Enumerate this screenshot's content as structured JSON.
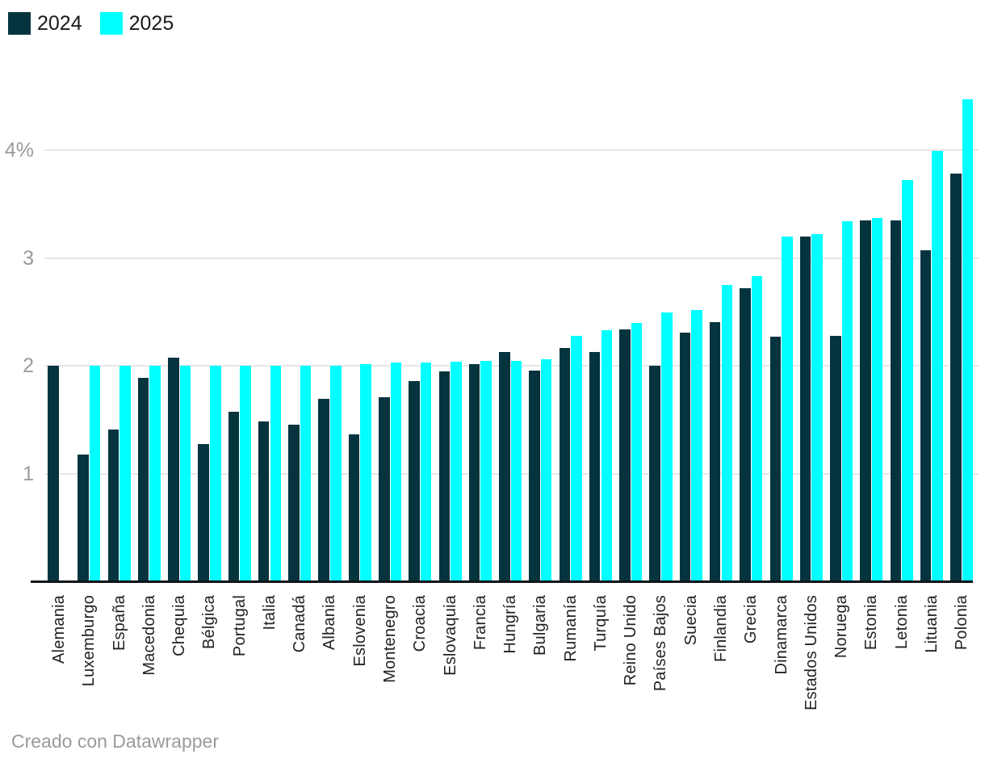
{
  "footer": {
    "credit_text": "Creado con Datawrapper"
  },
  "chart_data": {
    "type": "bar",
    "title": "",
    "xlabel": "",
    "ylabel": "",
    "unit": "%",
    "grid": true,
    "legend_position": "top-left",
    "ylim": [
      0,
      4.6
    ],
    "y_ticks": [
      {
        "value": 4,
        "label": "4%"
      },
      {
        "value": 3,
        "label": "3"
      },
      {
        "value": 2,
        "label": "2"
      },
      {
        "value": 1,
        "label": "1"
      }
    ],
    "categories": [
      "Alemania",
      "Luxemburgo",
      "España",
      "Macedonia",
      "Chequia",
      "Bélgica",
      "Portugal",
      "Italia",
      "Canadá",
      "Albania",
      "Eslovenia",
      "Montenegro",
      "Croacia",
      "Eslovaquia",
      "Francia",
      "Hungría",
      "Bulgaria",
      "Rumanía",
      "Turquía",
      "Reino Unido",
      "Países Bajos",
      "Suecia",
      "Finlandia",
      "Grecia",
      "Dinamarca",
      "Estados Unidos",
      "Noruega",
      "Estonia",
      "Letonia",
      "Lituania",
      "Polonia"
    ],
    "series": [
      {
        "name": "2024",
        "color": "#05343F",
        "values": [
          2.0,
          1.18,
          1.41,
          1.89,
          2.08,
          1.28,
          1.58,
          1.49,
          1.46,
          1.7,
          1.37,
          1.71,
          1.86,
          1.95,
          2.02,
          2.13,
          1.96,
          2.17,
          2.13,
          2.34,
          2.0,
          2.31,
          2.41,
          2.72,
          2.27,
          3.2,
          2.28,
          3.35,
          3.35,
          3.07,
          3.78
        ]
      },
      {
        "name": "2025",
        "color": "#00FFFF",
        "values": [
          null,
          2.0,
          2.0,
          2.0,
          2.0,
          2.0,
          2.0,
          2.0,
          2.0,
          2.0,
          2.02,
          2.03,
          2.03,
          2.04,
          2.05,
          2.05,
          2.06,
          2.28,
          2.33,
          2.4,
          2.5,
          2.52,
          2.75,
          2.83,
          3.2,
          3.22,
          3.34,
          3.37,
          3.72,
          3.99,
          4.47
        ]
      }
    ]
  }
}
